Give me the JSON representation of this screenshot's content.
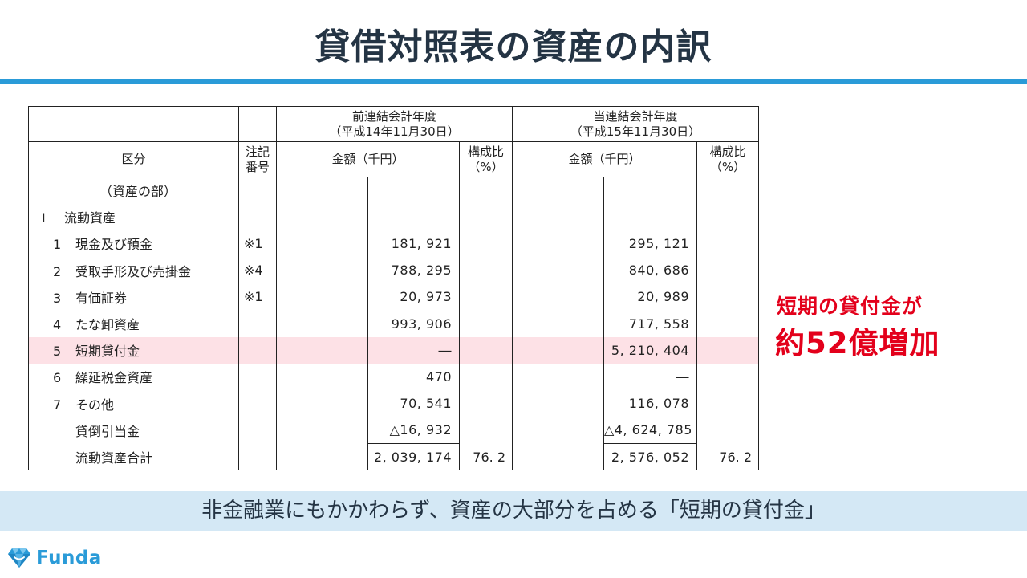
{
  "title": "貸借対照表の資産の内訳",
  "table": {
    "header": {
      "prev_period_line1": "前連結会計年度",
      "prev_period_line2": "（平成14年11月30日）",
      "curr_period_line1": "当連結会計年度",
      "curr_period_line2": "（平成15年11月30日）",
      "col_category": "区分",
      "col_note_line1": "注記",
      "col_note_line2": "番号",
      "col_amount_prev": "金額（千円）",
      "col_ratio_prev_line1": "構成比",
      "col_ratio_prev_line2": "（%）",
      "col_amount_curr": "金額（千円）",
      "col_ratio_curr_line1": "構成比",
      "col_ratio_curr_line2": "（%）"
    },
    "rows": [
      {
        "num": "",
        "label": "（資産の部）",
        "note": "",
        "prev": "",
        "curr": ""
      },
      {
        "num": "I",
        "label": "流動資産",
        "note": "",
        "prev": "",
        "curr": ""
      },
      {
        "num": "1",
        "label": "現金及び預金",
        "note": "※1",
        "prev": "181, 921",
        "curr": "295, 121"
      },
      {
        "num": "2",
        "label": "受取手形及び売掛金",
        "note": "※4",
        "prev": "788, 295",
        "curr": "840, 686"
      },
      {
        "num": "3",
        "label": "有価証券",
        "note": "※1",
        "prev": "20, 973",
        "curr": "20, 989"
      },
      {
        "num": "4",
        "label": "たな卸資産",
        "note": "",
        "prev": "993, 906",
        "curr": "717, 558"
      },
      {
        "num": "5",
        "label": "短期貸付金",
        "note": "",
        "prev": "―",
        "curr": "5, 210, 404"
      },
      {
        "num": "6",
        "label": "繰延税金資産",
        "note": "",
        "prev": "470",
        "curr": "―"
      },
      {
        "num": "7",
        "label": "その他",
        "note": "",
        "prev": "70, 541",
        "curr": "116, 078"
      },
      {
        "num": "",
        "label": "貸倒引当金",
        "note": "",
        "prev": "△16, 932",
        "curr": "△4, 624, 785"
      },
      {
        "num": "",
        "label": "流動資産合計",
        "note": "",
        "prev": "2, 039, 174",
        "prev_ratio": "76. 2",
        "curr": "2, 576, 052",
        "curr_ratio": "76. 2"
      }
    ]
  },
  "callout": {
    "line1": "短期の貸付金が",
    "line2": "約52億増加",
    "color": "#e3001b"
  },
  "banner": "非金融業にもかかわらず、資産の大部分を占める「短期の貸付金」",
  "logo": {
    "text": "Funda",
    "icon": "funda-diamond-logo-icon",
    "color": "#2a9bd8"
  },
  "colors": {
    "accent": "#2a9bd8",
    "highlight_row": "#fde1e6",
    "banner_bg": "#d4e8f5",
    "title": "#243444"
  }
}
